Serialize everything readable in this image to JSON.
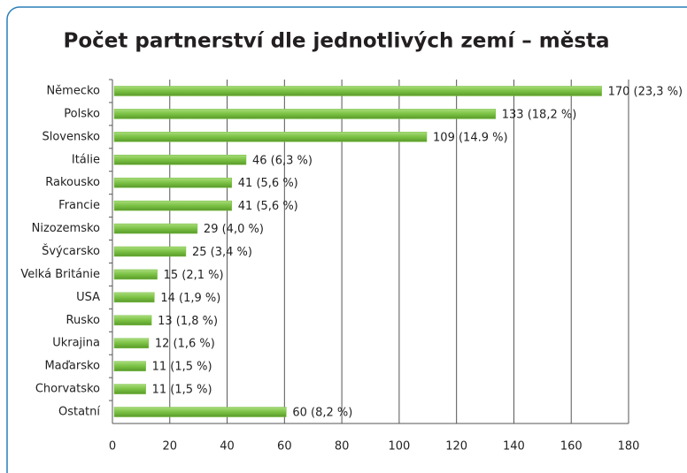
{
  "chart_data": {
    "type": "bar",
    "orientation": "horizontal",
    "title": "Počet partnerství dle jednotlivých zemí – města",
    "categories": [
      "Německo",
      "Polsko",
      "Slovensko",
      "Itálie",
      "Rakousko",
      "Francie",
      "Nizozemsko",
      "Švýcarsko",
      "Velká Británie",
      "USA",
      "Rusko",
      "Ukrajina",
      "Maďarsko",
      "Chorvatsko",
      "Ostatní"
    ],
    "values": [
      170,
      133,
      109,
      46,
      41,
      41,
      29,
      25,
      15,
      14,
      13,
      12,
      11,
      11,
      60
    ],
    "value_labels": [
      "170 (23,3 %)",
      "133 (18,2 %)",
      "109 (14.9 %)",
      "46 (6,3 %)",
      "41 (5,6 %)",
      "41 (5,6 %)",
      "29 (4,0 %)",
      "25 (3,4 %)",
      "15 (2,1 %)",
      "14 (1,9 %)",
      "13 (1,8 %)",
      "12 (1,6 %)",
      "11 (1,5 %)",
      "11 (1,5 %)",
      "60 (8,2 %)"
    ],
    "color": "#7ac143",
    "xlim": [
      0,
      180
    ],
    "xticks": [
      0,
      20,
      40,
      60,
      80,
      100,
      120,
      140,
      160,
      180
    ],
    "grid": true
  }
}
